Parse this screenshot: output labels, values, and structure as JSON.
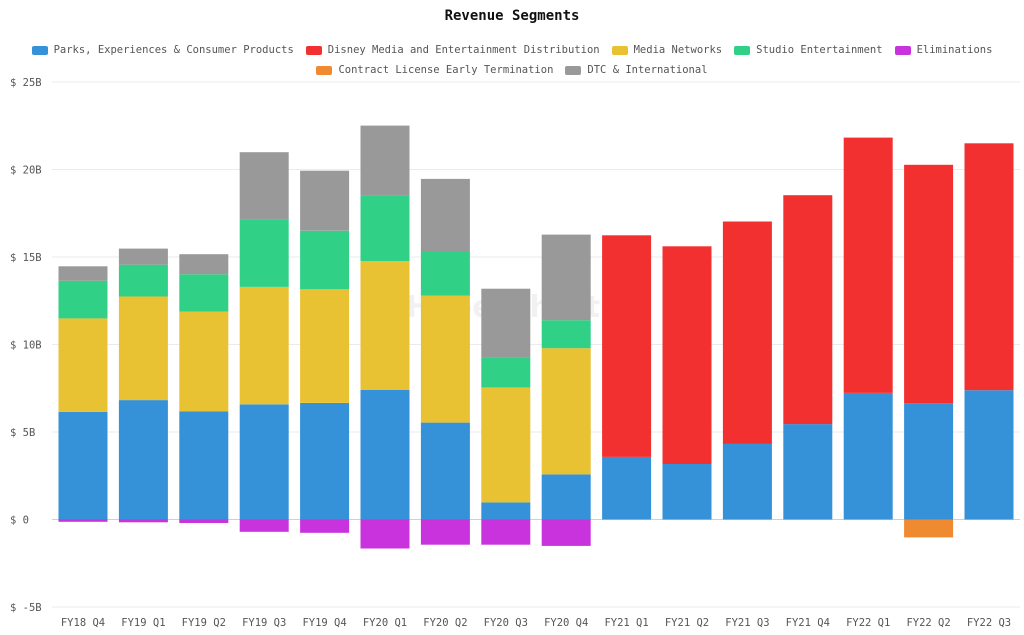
{
  "chart_data": {
    "type": "bar",
    "stacked": true,
    "title": "Revenue Segments",
    "watermark": "HyperCharts",
    "categories": [
      "FY18 Q4",
      "FY19 Q1",
      "FY19 Q2",
      "FY19 Q3",
      "FY19 Q4",
      "FY20 Q1",
      "FY20 Q2",
      "FY20 Q3",
      "FY20 Q4",
      "FY21 Q1",
      "FY21 Q2",
      "FY21 Q3",
      "FY21 Q4",
      "FY22 Q1",
      "FY22 Q2",
      "FY22 Q3"
    ],
    "y_ticks": [
      {
        "value": 25,
        "label": "$ 25B"
      },
      {
        "value": 20,
        "label": "$ 20B"
      },
      {
        "value": 15,
        "label": "$ 15B"
      },
      {
        "value": 10,
        "label": "$ 10B"
      },
      {
        "value": 5,
        "label": "$ 5B"
      },
      {
        "value": 0,
        "label": "$ 0"
      },
      {
        "value": -5,
        "label": "$ -5B"
      }
    ],
    "ylim": [
      -5,
      25
    ],
    "legend": [
      [
        "Parks, Experiences & Consumer Products",
        "Disney Media and Entertainment Distribution",
        "Media Networks",
        "Studio Entertainment",
        "Eliminations"
      ],
      [
        "Contract License Early Termination",
        "DTC & International"
      ]
    ],
    "series": [
      {
        "name": "Parks, Experiences & Consumer Products",
        "color": "#3592d8",
        "values": [
          6.15,
          6.82,
          6.17,
          6.58,
          6.66,
          7.4,
          5.54,
          0.98,
          2.58,
          3.58,
          3.17,
          4.34,
          5.45,
          7.23,
          6.65,
          7.39
        ]
      },
      {
        "name": "Disney Media and Entertainment Distribution",
        "color": "#f23030",
        "values": [
          0,
          0,
          0,
          0,
          0,
          0,
          0,
          0,
          0,
          12.66,
          12.44,
          12.69,
          13.08,
          14.59,
          13.62,
          14.11
        ]
      },
      {
        "name": "Media Networks",
        "color": "#e9c234",
        "values": [
          5.34,
          5.92,
          5.71,
          6.71,
          6.51,
          7.36,
          7.26,
          6.56,
          7.21,
          0,
          0,
          0,
          0,
          0,
          0,
          0
        ]
      },
      {
        "name": "Studio Entertainment",
        "color": "#31d087",
        "values": [
          2.15,
          1.82,
          2.13,
          3.84,
          3.33,
          3.76,
          2.54,
          1.74,
          1.6,
          0,
          0,
          0,
          0,
          0,
          0,
          0
        ]
      },
      {
        "name": "DTC & International",
        "color": "#999999",
        "values": [
          0.83,
          0.92,
          1.15,
          3.86,
          3.43,
          3.99,
          4.12,
          3.91,
          4.89,
          0,
          0,
          0,
          0,
          0,
          0,
          0
        ]
      },
      {
        "name": "Eliminations",
        "color": "#c833dd",
        "values": [
          -0.13,
          -0.16,
          -0.2,
          -0.7,
          -0.76,
          -1.66,
          -1.44,
          -1.44,
          -1.51,
          0,
          0,
          0,
          0,
          0,
          0,
          0
        ]
      },
      {
        "name": "Contract License Early Termination",
        "color": "#f08a30",
        "values": [
          0,
          0,
          0,
          0,
          0,
          0,
          0,
          0,
          0,
          0,
          0,
          0,
          0,
          0,
          -1.02,
          0
        ]
      }
    ]
  }
}
